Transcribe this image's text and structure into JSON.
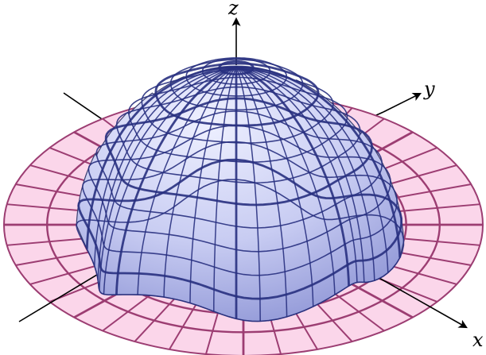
{
  "axes": {
    "x_label": "x",
    "y_label": "y",
    "z_label": "z"
  },
  "colors": {
    "disk_fill": "#fbd6ea",
    "disk_grid": "#9c3d72",
    "dome_fill_light": "#eef0ff",
    "dome_fill_mid": "#c8ccf2",
    "dome_fill_dark": "#8f96d6",
    "dome_grid": "#283080",
    "axis": "#000000"
  }
}
